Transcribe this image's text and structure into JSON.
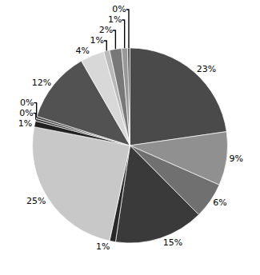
{
  "chart_data": {
    "type": "pie",
    "values": [
      23,
      9,
      6,
      15,
      1,
      25,
      1,
      0.4,
      0.4,
      12,
      4,
      1,
      2,
      1,
      0.4
    ],
    "value_labels": [
      "23%",
      "9%",
      "6%",
      "15%",
      "1%",
      "25%",
      "1%",
      "0%",
      "0%",
      "12%",
      "4%",
      "1%",
      "2%",
      "1%",
      "0%"
    ],
    "colors": [
      "#4a4a4a",
      "#909090",
      "#707070",
      "#3a3a3a",
      "#282828",
      "#c8c8c8",
      "#222222",
      "#383838",
      "#484848",
      "#525252",
      "#d8d8d8",
      "#b8b8b8",
      "#787878",
      "#989898",
      "#585858"
    ],
    "data_labels": true
  }
}
